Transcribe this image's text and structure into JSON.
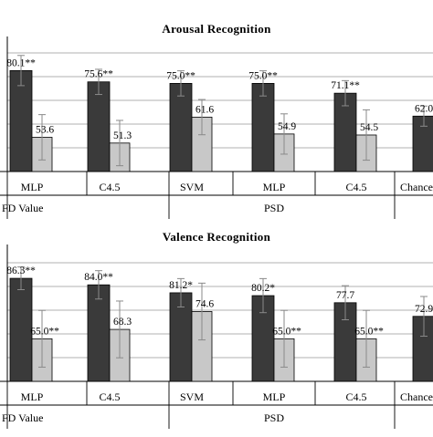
{
  "colors": {
    "dark_bar": "#3a3a3a",
    "light_bar": "#c8c8c8",
    "error_bar": "#8a8a8a",
    "gridline": "#999999",
    "axis": "#000000"
  },
  "chart_data": [
    {
      "type": "bar",
      "title": "Arousal Recognition",
      "categories": [
        "MLP",
        "C4.5",
        "SVM",
        "MLP",
        "C4.5",
        "Chance"
      ],
      "category_groups": [
        {
          "label": "FD Value",
          "span": [
            0,
            1
          ]
        },
        {
          "label": "PSD",
          "span": [
            2,
            4
          ]
        },
        {
          "label": "Chance",
          "span": [
            5,
            5
          ]
        }
      ],
      "series": [
        {
          "values": [
            80.1,
            75.6,
            75.0,
            75.0,
            71.1,
            62.0
          ],
          "errors": [
            6,
            5,
            5,
            5,
            5,
            4
          ],
          "labels": [
            "80.1**",
            "75.6**",
            "75.0**",
            "75.0**",
            "71.1**",
            "62.0"
          ]
        },
        {
          "values": [
            53.6,
            51.3,
            61.6,
            54.9,
            54.5,
            null
          ],
          "errors": [
            9,
            9,
            7,
            8,
            10,
            null
          ],
          "labels": [
            "53.6",
            "51.3",
            "61.6",
            "54.9",
            "54.5",
            ""
          ]
        }
      ],
      "ylim": [
        40,
        90
      ],
      "grid": true
    },
    {
      "type": "bar",
      "title": "Valence Recognition",
      "categories": [
        "MLP",
        "C4.5",
        "SVM",
        "MLP",
        "C4.5",
        "Chance"
      ],
      "category_groups": [
        {
          "label": "FD Value",
          "span": [
            0,
            1
          ]
        },
        {
          "label": "PSD",
          "span": [
            2,
            4
          ]
        },
        {
          "label": "Chance",
          "span": [
            5,
            5
          ]
        }
      ],
      "series": [
        {
          "values": [
            86.3,
            84.0,
            81.2,
            80.2,
            77.7,
            72.9
          ],
          "errors": [
            4,
            5,
            5,
            6,
            6,
            7
          ],
          "labels": [
            "86.3**",
            "84.0**",
            "81.2*",
            "80.2*",
            "77.7",
            "72.9"
          ]
        },
        {
          "values": [
            65.0,
            68.3,
            74.6,
            65.0,
            65.0,
            null
          ],
          "errors": [
            10,
            10,
            10,
            10,
            10,
            null
          ],
          "labels": [
            "65.0**",
            "68.3",
            "74.6",
            "65.0**",
            "65.0**",
            ""
          ]
        }
      ],
      "ylim": [
        50,
        95
      ],
      "grid": true
    }
  ]
}
